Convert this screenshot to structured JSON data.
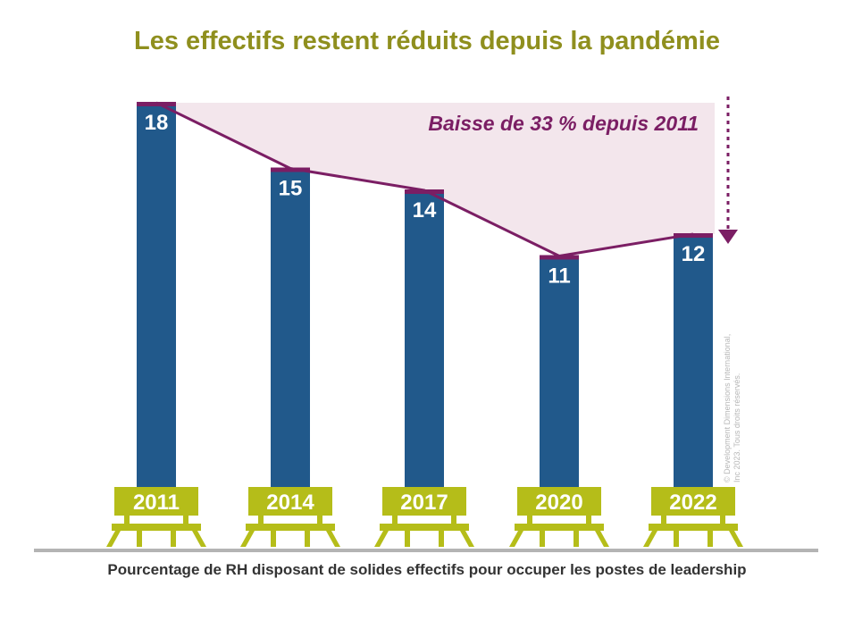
{
  "chart_data": {
    "type": "bar",
    "title": "Les effectifs restent réduits depuis la pandémie",
    "xlabel": "Pourcentage de RH disposant de solides effectifs pour occuper les postes de leadership",
    "categories": [
      "2011",
      "2014",
      "2017",
      "2020",
      "2022"
    ],
    "values": [
      18,
      15,
      14,
      11,
      12
    ],
    "value_labels": [
      "18",
      "15",
      "14",
      "11",
      "12"
    ],
    "ylim": [
      0,
      18
    ],
    "annotation": "Baisse de 33 % depuis 2011",
    "copyright": [
      "© Development Dimensions International,",
      "Inc 2023. Tous droits réservés."
    ],
    "grid": false,
    "legend": "none",
    "colors": {
      "bar": "#21598b",
      "bar_cap": "#7b1e64",
      "trend_line": "#7b1e64",
      "shaded_area": "#f3e6ec",
      "annotation": "#7b1e64",
      "title": "#8f8f1e",
      "bench": "#b5bd19",
      "baseline": "#b4b4b4",
      "subtitle": "#333333",
      "copyright": "#b8b8b8"
    }
  }
}
